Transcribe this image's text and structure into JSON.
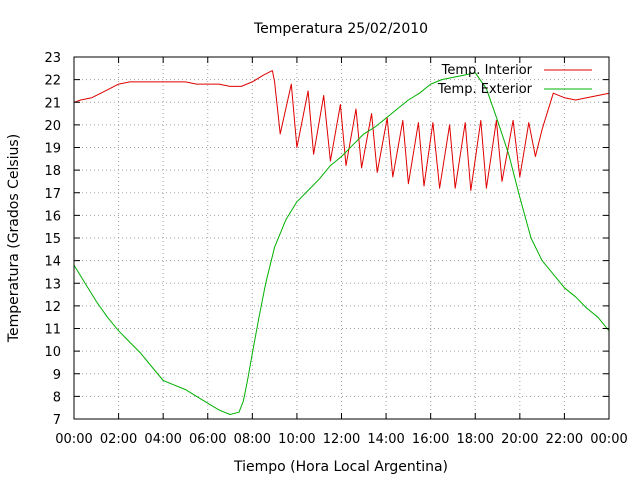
{
  "chart_data": {
    "type": "line",
    "title": "Temperatura 25/02/2010",
    "xlabel": "Tiempo (Hora Local Argentina)",
    "ylabel": "Temperatura (Grados Celsius)",
    "xlim": [
      0,
      24
    ],
    "ylim": [
      7,
      23
    ],
    "grid": true,
    "legend_position": "top-right",
    "x_ticks": [
      {
        "value": 0,
        "label": "00:00"
      },
      {
        "value": 2,
        "label": "02:00"
      },
      {
        "value": 4,
        "label": "04:00"
      },
      {
        "value": 6,
        "label": "06:00"
      },
      {
        "value": 8,
        "label": "08:00"
      },
      {
        "value": 10,
        "label": "10:00"
      },
      {
        "value": 12,
        "label": "12:00"
      },
      {
        "value": 14,
        "label": "14:00"
      },
      {
        "value": 16,
        "label": "16:00"
      },
      {
        "value": 18,
        "label": "18:00"
      },
      {
        "value": 20,
        "label": "20:00"
      },
      {
        "value": 22,
        "label": "22:00"
      },
      {
        "value": 24,
        "label": "00:00"
      }
    ],
    "y_ticks": [
      {
        "value": 7,
        "label": "7"
      },
      {
        "value": 8,
        "label": "8"
      },
      {
        "value": 9,
        "label": "9"
      },
      {
        "value": 10,
        "label": "10"
      },
      {
        "value": 11,
        "label": "11"
      },
      {
        "value": 12,
        "label": "12"
      },
      {
        "value": 13,
        "label": "13"
      },
      {
        "value": 14,
        "label": "14"
      },
      {
        "value": 15,
        "label": "15"
      },
      {
        "value": 16,
        "label": "16"
      },
      {
        "value": 17,
        "label": "17"
      },
      {
        "value": 18,
        "label": "18"
      },
      {
        "value": 19,
        "label": "19"
      },
      {
        "value": 20,
        "label": "20"
      },
      {
        "value": 21,
        "label": "21"
      },
      {
        "value": 22,
        "label": "22"
      },
      {
        "value": 23,
        "label": "23"
      }
    ],
    "series": [
      {
        "name": "Temp. Interior",
        "color": "#e00000",
        "x": [
          0.0,
          0.3,
          0.8,
          1.2,
          1.6,
          2.0,
          2.5,
          3.0,
          3.5,
          4.0,
          4.5,
          5.0,
          5.5,
          6.0,
          6.5,
          7.0,
          7.5,
          8.0,
          8.5,
          8.9,
          9.0,
          9.25,
          9.75,
          10.0,
          10.5,
          10.75,
          11.2,
          11.5,
          11.95,
          12.2,
          12.65,
          12.9,
          13.35,
          13.6,
          14.05,
          14.3,
          14.75,
          15.0,
          15.45,
          15.7,
          16.1,
          16.4,
          16.85,
          17.1,
          17.55,
          17.8,
          18.25,
          18.5,
          18.95,
          19.2,
          19.7,
          20.0,
          20.4,
          20.7,
          21.0,
          21.5,
          22.0,
          22.5,
          23.0,
          23.5,
          24.0
        ],
        "y": [
          21.0,
          21.1,
          21.2,
          21.4,
          21.6,
          21.8,
          21.9,
          21.9,
          21.9,
          21.9,
          21.9,
          21.9,
          21.8,
          21.8,
          21.8,
          21.7,
          21.7,
          21.9,
          22.2,
          22.4,
          21.9,
          19.6,
          21.8,
          19.0,
          21.5,
          18.7,
          21.3,
          18.4,
          20.9,
          18.2,
          20.7,
          18.1,
          20.5,
          17.9,
          20.3,
          17.7,
          20.2,
          17.4,
          20.1,
          17.3,
          20.1,
          17.2,
          20.0,
          17.2,
          20.1,
          17.1,
          20.2,
          17.2,
          20.2,
          17.5,
          20.2,
          17.7,
          20.1,
          18.6,
          19.8,
          21.4,
          21.2,
          21.1,
          21.2,
          21.3,
          21.4
        ]
      },
      {
        "name": "Temp. Exterior",
        "color": "#00b000",
        "x": [
          0.0,
          0.5,
          1.0,
          1.5,
          2.0,
          2.5,
          3.0,
          3.5,
          4.0,
          4.5,
          5.0,
          5.5,
          6.0,
          6.5,
          7.0,
          7.4,
          7.6,
          7.8,
          8.0,
          8.3,
          8.6,
          9.0,
          9.5,
          10.0,
          10.5,
          11.0,
          11.5,
          12.0,
          12.5,
          13.0,
          13.5,
          14.0,
          14.5,
          15.0,
          15.5,
          16.0,
          16.5,
          17.0,
          17.5,
          18.0,
          18.5,
          19.0,
          19.5,
          20.0,
          20.5,
          21.0,
          21.5,
          22.0,
          22.5,
          23.0,
          23.5,
          24.0
        ],
        "y": [
          13.8,
          13.0,
          12.2,
          11.5,
          10.9,
          10.4,
          9.9,
          9.3,
          8.7,
          8.5,
          8.3,
          8.0,
          7.7,
          7.4,
          7.2,
          7.3,
          7.8,
          8.8,
          9.9,
          11.5,
          13.0,
          14.6,
          15.8,
          16.6,
          17.1,
          17.6,
          18.2,
          18.6,
          19.1,
          19.6,
          19.9,
          20.3,
          20.7,
          21.1,
          21.4,
          21.8,
          22.0,
          22.1,
          22.2,
          22.3,
          21.6,
          20.2,
          18.7,
          16.8,
          15.0,
          14.0,
          13.4,
          12.8,
          12.4,
          11.9,
          11.5,
          10.9
        ]
      }
    ]
  }
}
